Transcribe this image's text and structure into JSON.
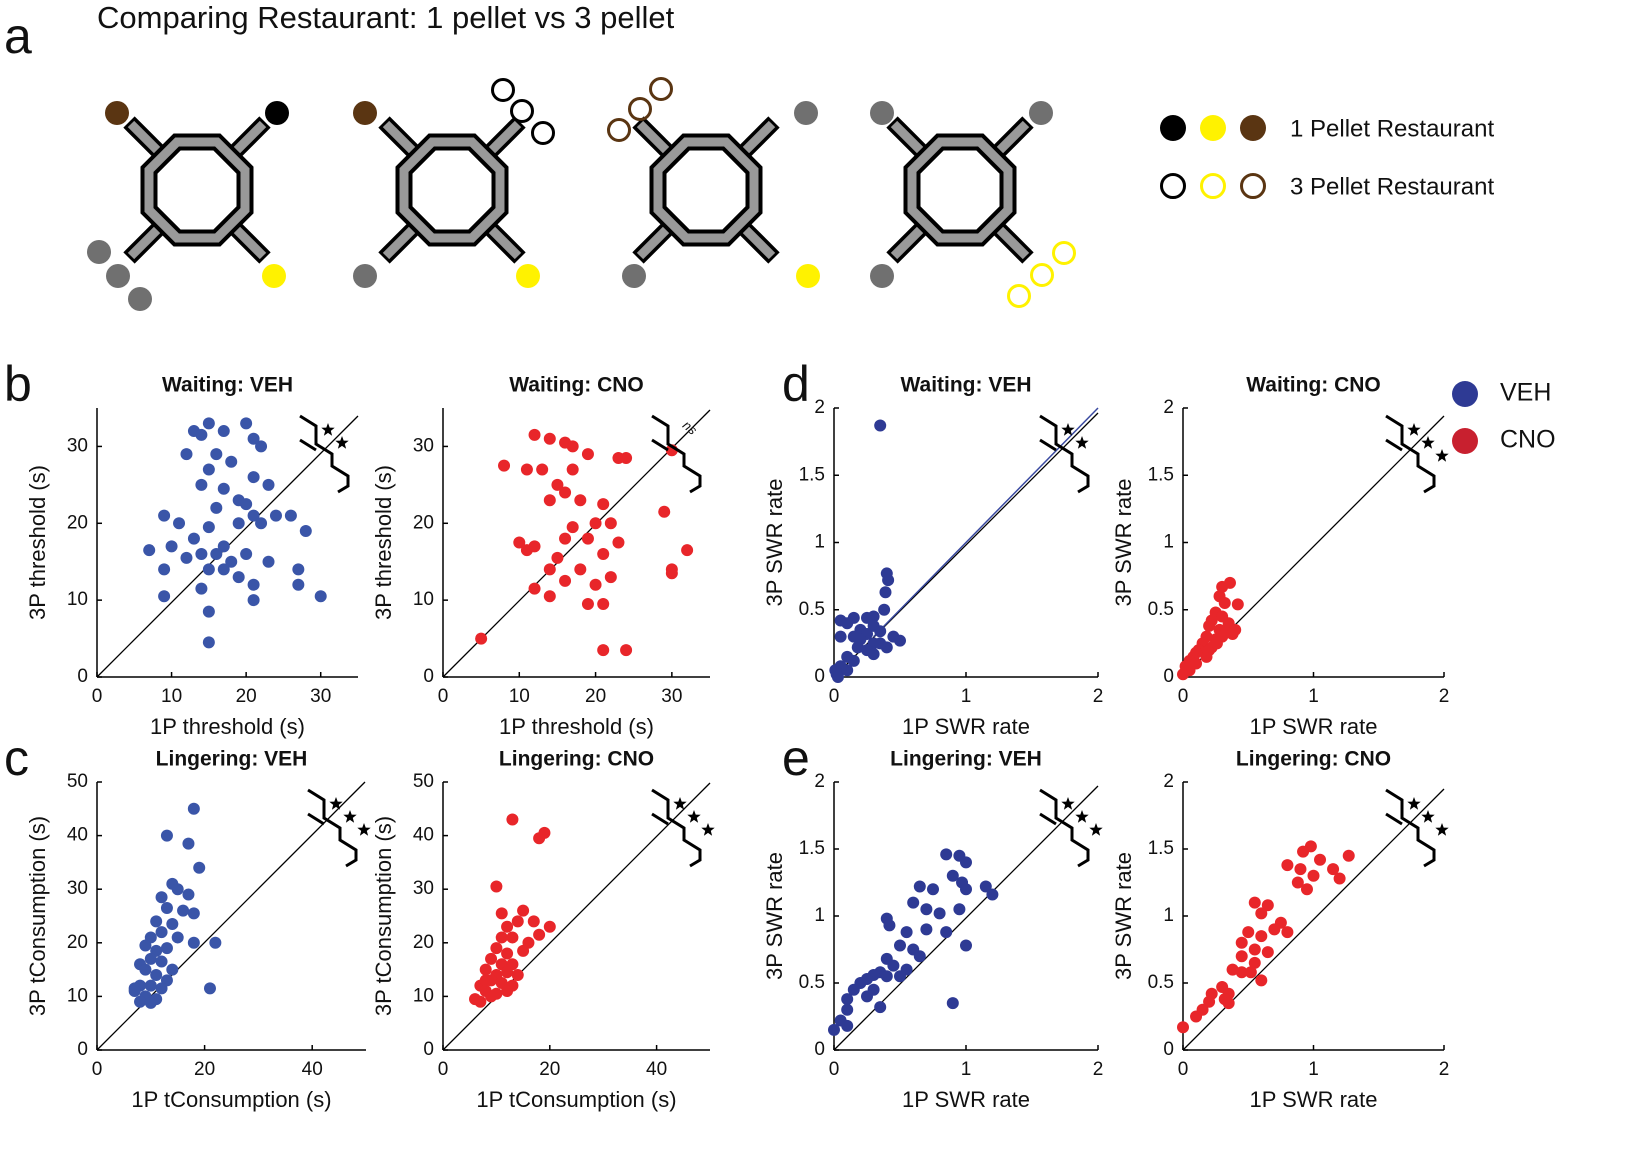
{
  "header": {
    "title": "Comparing Restaurant: 1 pellet vs 3 pellet",
    "panel_labels": [
      "a",
      "b",
      "c",
      "d",
      "e"
    ],
    "restaurant_legend": [
      "1 Pellet Restaurant",
      "3 Pellet Restaurant"
    ]
  },
  "legend": [
    {
      "name": "VEH",
      "color": "#2e3a94"
    },
    {
      "name": "CNO",
      "color": "#c8202f"
    }
  ],
  "chart_data": [
    {
      "type": "scatter",
      "title": "Waiting: VEH",
      "xlabel": "1P threshold (s)",
      "ylabel": "3P threshold (s)",
      "xlim": [
        0,
        35
      ],
      "ylim": [
        0,
        35
      ],
      "xticks": [
        0,
        10,
        20,
        30
      ],
      "yticks": [
        0,
        10,
        20,
        30
      ],
      "series": [
        {
          "color": "#3a55a8",
          "x": [
            15,
            13,
            14,
            17,
            20,
            21,
            22,
            16,
            12,
            18,
            15,
            21,
            23,
            14,
            17,
            19,
            16,
            20,
            21,
            24,
            26,
            9,
            11,
            15,
            19,
            22,
            28,
            13,
            10,
            17,
            7,
            14,
            16,
            18,
            20,
            12,
            23,
            15,
            9,
            17,
            27,
            19,
            21,
            27,
            14,
            30,
            9,
            21,
            15,
            15
          ],
          "values": [
            33,
            32,
            31.5,
            32,
            33,
            31,
            30,
            29,
            29,
            28,
            27,
            26,
            25,
            25,
            24.5,
            23,
            22,
            22.5,
            21,
            21,
            21,
            21,
            20,
            19.5,
            20,
            20,
            19,
            18,
            17,
            17,
            16.5,
            16,
            16,
            15,
            16,
            15.5,
            15,
            14,
            14,
            14,
            14,
            13,
            12,
            12,
            11.5,
            10.5,
            10.5,
            10,
            8.5,
            4.5
          ]
        }
      ]
    },
    {
      "type": "scatter",
      "title": "Waiting: CNO",
      "xlabel": "1P threshold (s)",
      "ylabel": "3P threshold (s)",
      "annotation": "ns",
      "xlim": [
        0,
        35
      ],
      "ylim": [
        0,
        35
      ],
      "xticks": [
        0,
        10,
        20,
        30
      ],
      "yticks": [
        0,
        10,
        20,
        30
      ],
      "series": [
        {
          "color": "#e8262a",
          "x": [
            12,
            14,
            16,
            17,
            19,
            30,
            8,
            11,
            13,
            17,
            24,
            23,
            15,
            16,
            14,
            18,
            21,
            20,
            17,
            22,
            29,
            10,
            12,
            16,
            19,
            23,
            32,
            11,
            15,
            21,
            14,
            18,
            22,
            30,
            30,
            16,
            12,
            20,
            14,
            19,
            21,
            5,
            21,
            24
          ],
          "values": [
            31.5,
            31,
            30.5,
            30,
            29,
            29.5,
            27.5,
            27,
            27,
            27,
            28.5,
            28.5,
            25,
            24,
            23,
            23,
            22.5,
            20,
            19.5,
            20,
            21.5,
            17.5,
            17,
            18,
            18,
            17.5,
            16.5,
            16.5,
            15.5,
            16,
            14,
            14,
            13,
            14,
            13.5,
            12.5,
            11.5,
            12,
            10.5,
            9.5,
            9.5,
            5,
            3.5,
            3.5
          ]
        }
      ]
    },
    {
      "type": "scatter",
      "title": "Lingering: VEH",
      "xlabel": "1P tConsumption (s)",
      "ylabel": "3P tConsumption (s)",
      "xlim": [
        0,
        50
      ],
      "ylim": [
        0,
        50
      ],
      "xticks": [
        0,
        20,
        40
      ],
      "yticks": [
        0,
        10,
        20,
        30,
        40,
        50
      ],
      "series": [
        {
          "color": "#3a55a8",
          "x": [
            18,
            13,
            17,
            14,
            19,
            15,
            17,
            12,
            13,
            16,
            18,
            11,
            14,
            12,
            10,
            15,
            22,
            18,
            9,
            11,
            13,
            10,
            8,
            12,
            14,
            9,
            11,
            13,
            8,
            7,
            10,
            12,
            21,
            9,
            8,
            11,
            10,
            7
          ],
          "values": [
            45,
            40,
            38.5,
            31,
            34,
            30,
            29,
            28.5,
            26.5,
            26,
            25.5,
            24,
            23.5,
            22,
            21,
            21,
            20,
            20,
            19.5,
            18.5,
            19,
            17,
            16,
            16.5,
            15,
            15,
            14,
            13,
            12,
            11.5,
            12,
            11.5,
            11.5,
            10,
            9,
            9.5,
            8.8,
            11
          ]
        }
      ]
    },
    {
      "type": "scatter",
      "title": "Lingering: CNO",
      "xlabel": "1P tConsumption (s)",
      "ylabel": "3P tConsumption (s)",
      "xlim": [
        0,
        50
      ],
      "ylim": [
        0,
        50
      ],
      "xticks": [
        0,
        20,
        40
      ],
      "yticks": [
        0,
        10,
        20,
        30,
        40,
        50
      ],
      "series": [
        {
          "color": "#e8262a",
          "x": [
            13,
            19,
            18,
            10,
            11,
            15,
            14,
            12,
            17,
            20,
            11,
            13,
            16,
            18,
            10,
            12,
            15,
            9,
            11,
            13,
            8,
            10,
            12,
            14,
            9,
            11,
            13,
            7,
            8,
            10,
            7,
            9,
            12,
            6,
            8
          ],
          "values": [
            43,
            40.5,
            39.5,
            30.5,
            25.5,
            26,
            24,
            23,
            24,
            23,
            21,
            21,
            20,
            21.5,
            19,
            18,
            18.5,
            17,
            16,
            16,
            15,
            14,
            14.5,
            14,
            13,
            12.5,
            12,
            12,
            11,
            10.5,
            9,
            10,
            11,
            9.5,
            13
          ]
        }
      ]
    },
    {
      "type": "scatter",
      "title": "Waiting: VEH",
      "xlabel": "1P SWR rate",
      "ylabel": "3P SWR rate",
      "xlim": [
        0,
        2
      ],
      "ylim": [
        0,
        2
      ],
      "xticks": [
        0,
        1,
        2
      ],
      "yticks": [
        0,
        0.5,
        1,
        1.5,
        2
      ],
      "series": [
        {
          "color": "#2e3a94",
          "x": [
            0.35,
            0.4,
            0.41,
            0.39,
            0.38,
            0.3,
            0.25,
            0.05,
            0.15,
            0.1,
            0.2,
            0.3,
            0.05,
            0.15,
            0.25,
            0.35,
            0.45,
            0.5,
            0.2,
            0.3,
            0.18,
            0.25,
            0.4,
            0.1,
            0.15,
            0.3,
            0.35,
            0.05,
            0.1,
            0.02,
            0.01,
            0.03
          ],
          "values": [
            1.87,
            0.77,
            0.72,
            0.63,
            0.5,
            0.45,
            0.44,
            0.42,
            0.44,
            0.4,
            0.35,
            0.38,
            0.3,
            0.3,
            0.32,
            0.34,
            0.3,
            0.27,
            0.28,
            0.25,
            0.22,
            0.2,
            0.22,
            0.15,
            0.12,
            0.17,
            0.25,
            0.08,
            0.05,
            0.02,
            0.05,
            0
          ]
        }
      ]
    },
    {
      "type": "scatter",
      "title": "Waiting: CNO",
      "xlabel": "1P SWR rate",
      "ylabel": "3P SWR rate",
      "xlim": [
        0,
        2
      ],
      "ylim": [
        0,
        2
      ],
      "xticks": [
        0,
        1,
        2
      ],
      "yticks": [
        0,
        0.5,
        1,
        1.5,
        2
      ],
      "series": [
        {
          "color": "#e8262a",
          "x": [
            0.36,
            0.3,
            0.28,
            0.32,
            0.42,
            0.25,
            0.3,
            0.22,
            0.35,
            0.2,
            0.28,
            0.33,
            0.4,
            0.18,
            0.25,
            0.3,
            0.15,
            0.22,
            0.12,
            0.1,
            0.18,
            0.08,
            0.05,
            0.02,
            0.05,
            0,
            0.1,
            0.2,
            0.38,
            0.26
          ],
          "values": [
            0.7,
            0.67,
            0.6,
            0.55,
            0.54,
            0.48,
            0.45,
            0.42,
            0.4,
            0.38,
            0.35,
            0.33,
            0.35,
            0.3,
            0.28,
            0.3,
            0.25,
            0.22,
            0.2,
            0.18,
            0.15,
            0.15,
            0.12,
            0.08,
            0.05,
            0.02,
            0.1,
            0.2,
            0.32,
            0.25
          ]
        }
      ]
    },
    {
      "type": "scatter",
      "title": "Lingering: VEH",
      "xlabel": "1P SWR rate",
      "ylabel": "3P SWR rate",
      "xlim": [
        0,
        2
      ],
      "ylim": [
        0,
        2
      ],
      "xticks": [
        0,
        1,
        2
      ],
      "yticks": [
        0,
        0.5,
        1,
        1.5,
        2
      ],
      "series": [
        {
          "color": "#2e3a94",
          "x": [
            0.95,
            1,
            0.85,
            0.9,
            0.65,
            0.75,
            0.97,
            1,
            1.15,
            1.2,
            0.6,
            0.7,
            0.8,
            0.95,
            0.4,
            0.42,
            0.55,
            0.7,
            0.85,
            1,
            0.5,
            0.6,
            0.65,
            0.4,
            0.45,
            0.55,
            0.35,
            0.3,
            0.25,
            0.2,
            0.4,
            0.5,
            0.15,
            0.3,
            0.1,
            0.25,
            0.35,
            0.9,
            0.1,
            0.05,
            0,
            0.1
          ],
          "values": [
            1.45,
            1.4,
            1.46,
            1.3,
            1.22,
            1.2,
            1.25,
            1.2,
            1.22,
            1.16,
            1.1,
            1.05,
            1.02,
            1.05,
            0.98,
            0.93,
            0.88,
            0.9,
            0.88,
            0.78,
            0.78,
            0.75,
            0.7,
            0.68,
            0.63,
            0.6,
            0.58,
            0.56,
            0.53,
            0.5,
            0.55,
            0.55,
            0.45,
            0.45,
            0.38,
            0.4,
            0.32,
            0.35,
            0.3,
            0.22,
            0.15,
            0.18
          ]
        }
      ]
    },
    {
      "type": "scatter",
      "title": "Lingering: CNO",
      "xlabel": "1P SWR rate",
      "ylabel": "3P SWR rate",
      "xlim": [
        0,
        2
      ],
      "ylim": [
        0,
        2
      ],
      "xticks": [
        0,
        1,
        2
      ],
      "yticks": [
        0,
        0.5,
        1,
        1.5,
        2
      ],
      "series": [
        {
          "color": "#e8262a",
          "x": [
            0.98,
            0.92,
            1.05,
            1.27,
            0.8,
            0.9,
            1,
            1.15,
            0.88,
            0.95,
            1.2,
            0.55,
            0.65,
            0.6,
            0.75,
            0.7,
            0.8,
            0.5,
            0.6,
            0.45,
            0.55,
            0.65,
            0.45,
            0.55,
            0.38,
            0.45,
            0.52,
            0.6,
            0.3,
            0.22,
            0.35,
            0.2,
            0.32,
            0.35,
            0.15,
            0.1,
            0
          ],
          "values": [
            1.52,
            1.48,
            1.42,
            1.45,
            1.38,
            1.35,
            1.3,
            1.35,
            1.25,
            1.2,
            1.28,
            1.1,
            1.08,
            1.02,
            0.95,
            0.9,
            0.88,
            0.88,
            0.85,
            0.8,
            0.75,
            0.73,
            0.7,
            0.65,
            0.6,
            0.58,
            0.58,
            0.52,
            0.47,
            0.42,
            0.42,
            0.36,
            0.38,
            0.35,
            0.3,
            0.25,
            0.17
          ]
        }
      ]
    }
  ]
}
